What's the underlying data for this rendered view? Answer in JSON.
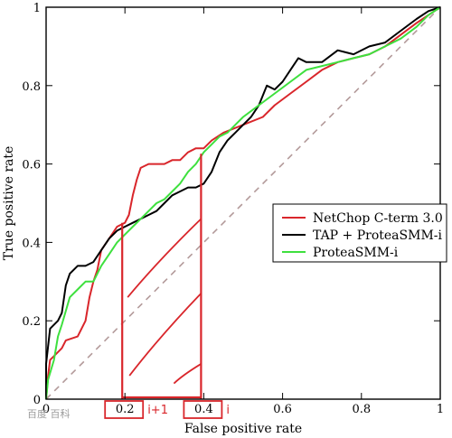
{
  "chart_data": {
    "type": "line",
    "title": "",
    "xlabel": "False positive rate",
    "ylabel": "True positive rate",
    "xlim": [
      0,
      1
    ],
    "ylim": [
      0,
      1
    ],
    "grid": false,
    "legend_position": "middle-right",
    "x_ticks": [
      {
        "value": 0,
        "label": "0"
      },
      {
        "value": 0.2,
        "label": "0.2"
      },
      {
        "value": 0.4,
        "label": "0.4"
      },
      {
        "value": 0.6,
        "label": "0.6"
      },
      {
        "value": 0.8,
        "label": "0.8"
      },
      {
        "value": 1,
        "label": "1"
      }
    ],
    "y_ticks": [
      {
        "value": 0,
        "label": "0"
      },
      {
        "value": 0.2,
        "label": "0.2"
      },
      {
        "value": 0.4,
        "label": "0.4"
      },
      {
        "value": 0.6,
        "label": "0.6"
      },
      {
        "value": 0.8,
        "label": "0.8"
      },
      {
        "value": 1,
        "label": "1"
      }
    ],
    "series": [
      {
        "name": "NetChop C-term 3.0",
        "color": "#d9262b",
        "points": [
          [
            0,
            0
          ],
          [
            0.005,
            0.06
          ],
          [
            0.01,
            0.1
          ],
          [
            0.02,
            0.11
          ],
          [
            0.04,
            0.13
          ],
          [
            0.05,
            0.15
          ],
          [
            0.08,
            0.16
          ],
          [
            0.1,
            0.2
          ],
          [
            0.11,
            0.26
          ],
          [
            0.12,
            0.3
          ],
          [
            0.13,
            0.33
          ],
          [
            0.14,
            0.38
          ],
          [
            0.16,
            0.41
          ],
          [
            0.18,
            0.44
          ],
          [
            0.2,
            0.45
          ],
          [
            0.21,
            0.47
          ],
          [
            0.22,
            0.52
          ],
          [
            0.23,
            0.56
          ],
          [
            0.24,
            0.59
          ],
          [
            0.26,
            0.6
          ],
          [
            0.3,
            0.6
          ],
          [
            0.32,
            0.61
          ],
          [
            0.34,
            0.61
          ],
          [
            0.36,
            0.63
          ],
          [
            0.38,
            0.64
          ],
          [
            0.4,
            0.64
          ],
          [
            0.42,
            0.66
          ],
          [
            0.45,
            0.68
          ],
          [
            0.5,
            0.7
          ],
          [
            0.55,
            0.72
          ],
          [
            0.58,
            0.75
          ],
          [
            0.62,
            0.78
          ],
          [
            0.66,
            0.81
          ],
          [
            0.7,
            0.84
          ],
          [
            0.74,
            0.86
          ],
          [
            0.78,
            0.87
          ],
          [
            0.82,
            0.88
          ],
          [
            0.86,
            0.9
          ],
          [
            0.9,
            0.93
          ],
          [
            0.94,
            0.96
          ],
          [
            0.97,
            0.98
          ],
          [
            1,
            1
          ]
        ]
      },
      {
        "name": "TAP + ProteaSMM-i",
        "color": "#000000",
        "points": [
          [
            0,
            0
          ],
          [
            0,
            0.09
          ],
          [
            0.01,
            0.18
          ],
          [
            0.03,
            0.2
          ],
          [
            0.04,
            0.22
          ],
          [
            0.05,
            0.29
          ],
          [
            0.06,
            0.32
          ],
          [
            0.08,
            0.34
          ],
          [
            0.1,
            0.34
          ],
          [
            0.12,
            0.35
          ],
          [
            0.14,
            0.38
          ],
          [
            0.16,
            0.41
          ],
          [
            0.18,
            0.43
          ],
          [
            0.2,
            0.44
          ],
          [
            0.22,
            0.45
          ],
          [
            0.24,
            0.46
          ],
          [
            0.26,
            0.47
          ],
          [
            0.28,
            0.48
          ],
          [
            0.3,
            0.5
          ],
          [
            0.32,
            0.52
          ],
          [
            0.34,
            0.53
          ],
          [
            0.36,
            0.54
          ],
          [
            0.38,
            0.54
          ],
          [
            0.4,
            0.55
          ],
          [
            0.42,
            0.58
          ],
          [
            0.44,
            0.63
          ],
          [
            0.46,
            0.66
          ],
          [
            0.48,
            0.68
          ],
          [
            0.5,
            0.7
          ],
          [
            0.52,
            0.72
          ],
          [
            0.54,
            0.75
          ],
          [
            0.56,
            0.8
          ],
          [
            0.58,
            0.79
          ],
          [
            0.6,
            0.81
          ],
          [
            0.62,
            0.84
          ],
          [
            0.64,
            0.87
          ],
          [
            0.66,
            0.86
          ],
          [
            0.7,
            0.86
          ],
          [
            0.74,
            0.89
          ],
          [
            0.78,
            0.88
          ],
          [
            0.82,
            0.9
          ],
          [
            0.86,
            0.91
          ],
          [
            0.9,
            0.94
          ],
          [
            0.94,
            0.97
          ],
          [
            0.97,
            0.99
          ],
          [
            1,
            1
          ]
        ]
      },
      {
        "name": "ProteaSMM-i",
        "color": "#3ee03e",
        "points": [
          [
            0,
            0
          ],
          [
            0.005,
            0.05
          ],
          [
            0.02,
            0.1
          ],
          [
            0.03,
            0.16
          ],
          [
            0.04,
            0.19
          ],
          [
            0.06,
            0.26
          ],
          [
            0.08,
            0.28
          ],
          [
            0.1,
            0.3
          ],
          [
            0.12,
            0.3
          ],
          [
            0.14,
            0.34
          ],
          [
            0.16,
            0.37
          ],
          [
            0.18,
            0.4
          ],
          [
            0.2,
            0.42
          ],
          [
            0.22,
            0.44
          ],
          [
            0.24,
            0.46
          ],
          [
            0.26,
            0.48
          ],
          [
            0.28,
            0.5
          ],
          [
            0.3,
            0.51
          ],
          [
            0.32,
            0.53
          ],
          [
            0.34,
            0.55
          ],
          [
            0.36,
            0.58
          ],
          [
            0.38,
            0.6
          ],
          [
            0.4,
            0.63
          ],
          [
            0.42,
            0.65
          ],
          [
            0.44,
            0.67
          ],
          [
            0.46,
            0.68
          ],
          [
            0.48,
            0.7
          ],
          [
            0.5,
            0.72
          ],
          [
            0.54,
            0.75
          ],
          [
            0.58,
            0.78
          ],
          [
            0.62,
            0.81
          ],
          [
            0.66,
            0.84
          ],
          [
            0.7,
            0.85
          ],
          [
            0.74,
            0.86
          ],
          [
            0.78,
            0.87
          ],
          [
            0.82,
            0.88
          ],
          [
            0.86,
            0.9
          ],
          [
            0.9,
            0.92
          ],
          [
            0.94,
            0.95
          ],
          [
            0.97,
            0.98
          ],
          [
            1,
            1
          ]
        ]
      },
      {
        "name": "",
        "color": "#b39a9a",
        "dashed": true,
        "points": [
          [
            0,
            0
          ],
          [
            1,
            1
          ]
        ]
      }
    ],
    "annotations": {
      "box_x": [
        0.2,
        0.4
      ],
      "boxed_tick_labels": [
        "0.2",
        "0.4"
      ],
      "labels": [
        {
          "text": "i+1",
          "near_x": 0.2
        },
        {
          "text": "i",
          "near_x": 0.4
        }
      ],
      "color": "#d9262b"
    }
  },
  "watermark": "百度 百科"
}
